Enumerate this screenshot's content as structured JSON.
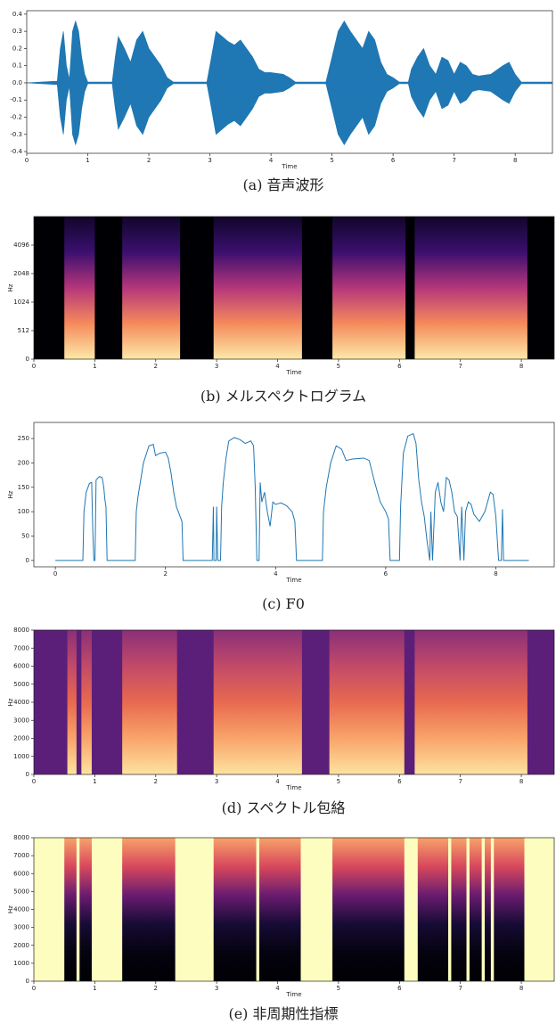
{
  "chart_data": [
    {
      "type": "area",
      "caption": "(a) 音声波形",
      "xlabel": "Time",
      "color": "#1f77b4",
      "x": [
        0,
        0.5,
        0.55,
        0.6,
        0.65,
        0.7,
        0.75,
        0.8,
        0.85,
        0.9,
        0.95,
        1.0,
        1.4,
        1.45,
        1.5,
        1.6,
        1.7,
        1.8,
        1.9,
        2.0,
        2.1,
        2.2,
        2.3,
        2.4,
        2.95,
        3.0,
        3.1,
        3.2,
        3.3,
        3.4,
        3.5,
        3.6,
        3.7,
        3.8,
        3.9,
        4.0,
        4.2,
        4.3,
        4.4,
        4.9,
        5.0,
        5.1,
        5.2,
        5.3,
        5.5,
        5.6,
        5.7,
        5.8,
        5.9,
        6.0,
        6.1,
        6.25,
        6.3,
        6.4,
        6.5,
        6.6,
        6.7,
        6.8,
        6.9,
        7.0,
        7.1,
        7.2,
        7.3,
        7.4,
        7.6,
        7.8,
        7.9,
        8.0,
        8.1,
        8.6
      ],
      "values": [
        0,
        0.01,
        0.2,
        0.3,
        0.1,
        0.02,
        0.3,
        0.36,
        0.3,
        0.15,
        0.05,
        0.005,
        0.005,
        0.15,
        0.27,
        0.2,
        0.12,
        0.25,
        0.3,
        0.2,
        0.15,
        0.1,
        0.03,
        0.005,
        0.005,
        0.1,
        0.3,
        0.27,
        0.24,
        0.22,
        0.25,
        0.2,
        0.15,
        0.08,
        0.06,
        0.06,
        0.05,
        0.03,
        0.005,
        0.005,
        0.15,
        0.3,
        0.36,
        0.3,
        0.2,
        0.3,
        0.25,
        0.12,
        0.05,
        0.03,
        0.005,
        0.005,
        0.08,
        0.15,
        0.2,
        0.1,
        0.05,
        0.15,
        0.13,
        0.05,
        0.12,
        0.1,
        0.05,
        0.04,
        0.05,
        0.1,
        0.12,
        0.05,
        0.005,
        0.005
      ],
      "xlim": [
        0,
        8.61
      ],
      "ylim": [
        -0.41,
        0.42
      ],
      "xticks": [
        0,
        1,
        2,
        3,
        4,
        5,
        6,
        7,
        8
      ],
      "yticks": [
        -0.4,
        -0.3,
        -0.2,
        -0.1,
        {
          "value": 0,
          "label": "0.0"
        },
        0.1,
        0.2,
        0.3,
        0.4
      ]
    },
    {
      "type": "spectrogram",
      "caption": "(b) メルスペクトログラム",
      "xlabel": "Time",
      "ylabel": "Hz",
      "background": "#000004",
      "colors": [
        "#fde9a8",
        "#f58a5c",
        "#b5367a",
        "#3b0f6f",
        "#10062a"
      ],
      "segments": [
        [
          0.5,
          1.0
        ],
        [
          1.45,
          2.4
        ],
        [
          2.95,
          4.4
        ],
        [
          4.9,
          6.1
        ],
        [
          6.25,
          8.1
        ]
      ],
      "xlim": [
        0,
        8.54
      ],
      "ylim": [
        0,
        8192
      ],
      "yscale": "symlog",
      "linthresh": 1024,
      "linscale": 2,
      "xticks": [
        0,
        1,
        2,
        3,
        4,
        5,
        6,
        7,
        8
      ],
      "yticks": [
        0,
        512,
        1024,
        2048,
        4096
      ]
    },
    {
      "type": "line",
      "caption": "(c) F0",
      "xlabel": "Time",
      "ylabel": "Hz",
      "color": "#1f77b4",
      "x": [
        0,
        0.5,
        0.52,
        0.56,
        0.62,
        0.66,
        0.68,
        0.7,
        0.72,
        0.74,
        0.8,
        0.85,
        0.88,
        0.9,
        0.92,
        0.94,
        1.45,
        1.47,
        1.5,
        1.6,
        1.7,
        1.78,
        1.82,
        1.9,
        2.0,
        2.05,
        2.1,
        2.15,
        2.2,
        2.25,
        2.3,
        2.32,
        2.85,
        2.87,
        2.88,
        2.92,
        2.93,
        2.95,
        3.0,
        3.02,
        3.05,
        3.1,
        3.15,
        3.25,
        3.35,
        3.45,
        3.55,
        3.6,
        3.63,
        3.66,
        3.7,
        3.72,
        3.75,
        3.8,
        3.85,
        3.9,
        3.95,
        4.0,
        4.1,
        4.2,
        4.3,
        4.35,
        4.38,
        4.85,
        4.87,
        4.92,
        5.0,
        5.1,
        5.2,
        5.28,
        5.4,
        5.6,
        5.7,
        5.8,
        5.9,
        6.0,
        6.05,
        6.08,
        6.25,
        6.27,
        6.32,
        6.4,
        6.5,
        6.55,
        6.6,
        6.65,
        6.7,
        6.75,
        6.8,
        6.82,
        6.85,
        6.9,
        6.95,
        7.0,
        7.05,
        7.1,
        7.15,
        7.2,
        7.25,
        7.3,
        7.35,
        7.38,
        7.42,
        7.45,
        7.5,
        7.55,
        7.6,
        7.7,
        7.8,
        7.9,
        7.95,
        8.0,
        8.05,
        8.1,
        8.12,
        8.14,
        8.6
      ],
      "values": [
        0,
        0,
        100,
        140,
        158,
        160,
        60,
        0,
        0,
        165,
        172,
        170,
        150,
        125,
        110,
        0,
        0,
        100,
        130,
        200,
        235,
        238,
        215,
        220,
        222,
        210,
        180,
        140,
        110,
        95,
        80,
        0,
        0,
        110,
        0,
        0,
        110,
        0,
        0,
        110,
        160,
        210,
        245,
        252,
        248,
        240,
        245,
        235,
        150,
        0,
        0,
        160,
        120,
        140,
        100,
        70,
        120,
        115,
        118,
        112,
        100,
        80,
        0,
        0,
        100,
        150,
        200,
        235,
        228,
        205,
        208,
        210,
        205,
        160,
        120,
        100,
        85,
        0,
        0,
        110,
        220,
        255,
        260,
        240,
        165,
        120,
        90,
        40,
        0,
        100,
        0,
        140,
        160,
        120,
        100,
        170,
        165,
        140,
        100,
        90,
        0,
        110,
        0,
        100,
        120,
        115,
        95,
        80,
        100,
        140,
        135,
        90,
        0,
        0,
        105,
        0,
        0
      ],
      "xlim": [
        -0.39,
        9.06
      ],
      "ylim": [
        -13,
        283
      ],
      "xticks": [
        0,
        2,
        4,
        6,
        8
      ],
      "yticks": [
        0,
        50,
        100,
        150,
        200,
        250
      ]
    },
    {
      "type": "spectrogram",
      "caption": "(d) スペクトル包絡",
      "xlabel": "Time",
      "ylabel": "Hz",
      "background": "#5b1f7a",
      "colors": [
        "#fde3a0",
        "#f9a46a",
        "#e8694f",
        "#c24a68",
        "#8a2f78"
      ],
      "segments": [
        [
          0.55,
          0.7
        ],
        [
          0.78,
          0.95
        ],
        [
          1.45,
          2.35
        ],
        [
          2.95,
          4.4
        ],
        [
          4.85,
          6.08
        ],
        [
          6.25,
          8.1
        ]
      ],
      "xlim": [
        0,
        8.54
      ],
      "ylim": [
        0,
        8000
      ],
      "xticks": [
        0,
        1,
        2,
        3,
        4,
        5,
        6,
        7,
        8
      ],
      "yticks": [
        0,
        1000,
        2000,
        3000,
        4000,
        5000,
        6000,
        7000,
        8000
      ]
    },
    {
      "type": "spectrogram",
      "caption": "(e) 非周期性指標",
      "xlabel": "Time",
      "ylabel": "Hz",
      "background": "#fcfdbf",
      "colors": [
        "#000004",
        "#05030f",
        "#170b35",
        "#6a1c70",
        "#d8485c",
        "#f7a26b"
      ],
      "segments": [
        [
          0.5,
          0.7
        ],
        [
          0.75,
          0.95
        ],
        [
          1.45,
          2.32
        ],
        [
          2.95,
          3.65
        ],
        [
          3.7,
          4.38
        ],
        [
          4.9,
          6.08
        ],
        [
          6.3,
          6.8
        ],
        [
          6.85,
          7.1
        ],
        [
          7.15,
          7.35
        ],
        [
          7.4,
          7.5
        ],
        [
          7.55,
          8.05
        ]
      ],
      "xlim": [
        0,
        8.54
      ],
      "ylim": [
        0,
        8000
      ],
      "xticks": [
        0,
        1,
        2,
        3,
        4,
        5,
        6,
        7,
        8
      ],
      "yticks": [
        0,
        1000,
        2000,
        3000,
        4000,
        5000,
        6000,
        7000,
        8000
      ]
    }
  ]
}
